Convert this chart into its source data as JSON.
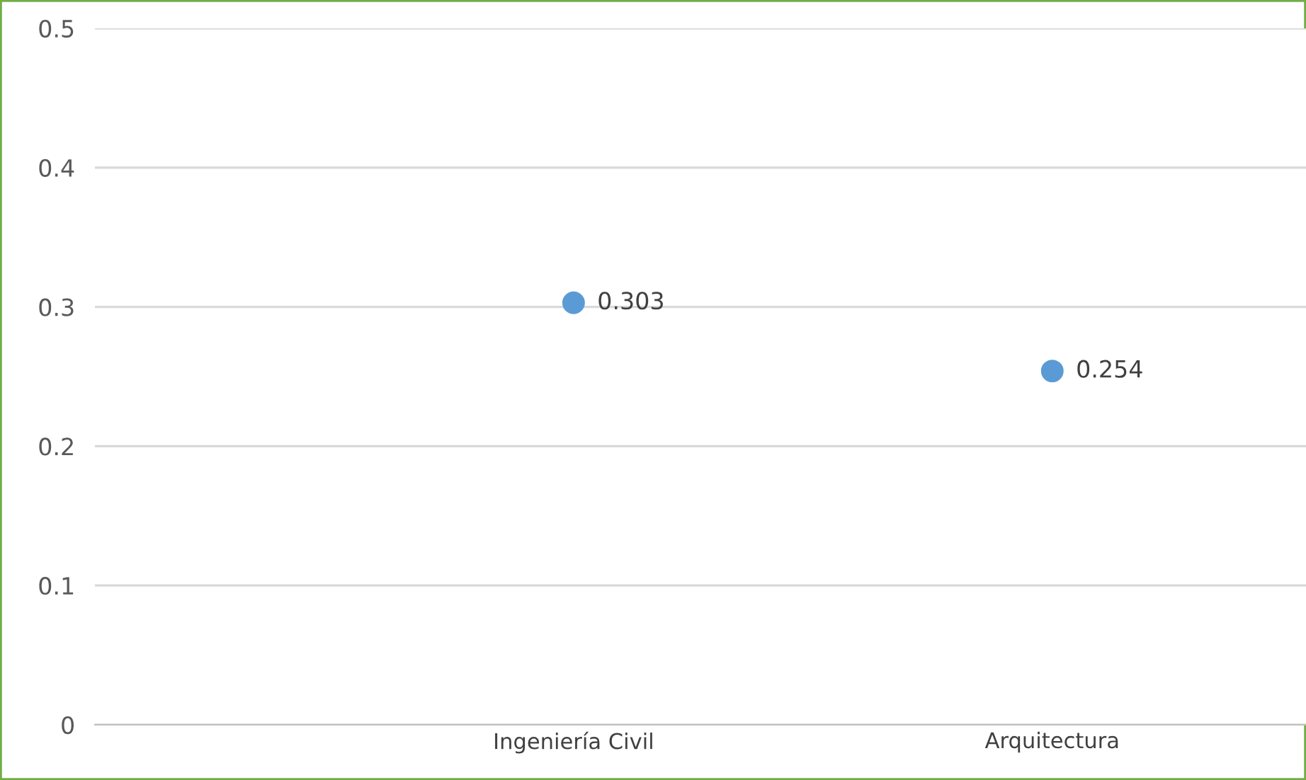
{
  "chart_data": {
    "type": "scatter",
    "categories": [
      "Ingeniería Civil",
      "Arquitectura"
    ],
    "series": [
      {
        "color": "#5b9bd5",
        "values": [
          0.303,
          0.254
        ]
      }
    ],
    "ylim": [
      0,
      0.5
    ],
    "yticks": [
      0,
      0.1,
      0.2,
      0.3,
      0.4,
      0.5
    ],
    "grid": "y",
    "marker": "circle",
    "data_labels": true
  }
}
